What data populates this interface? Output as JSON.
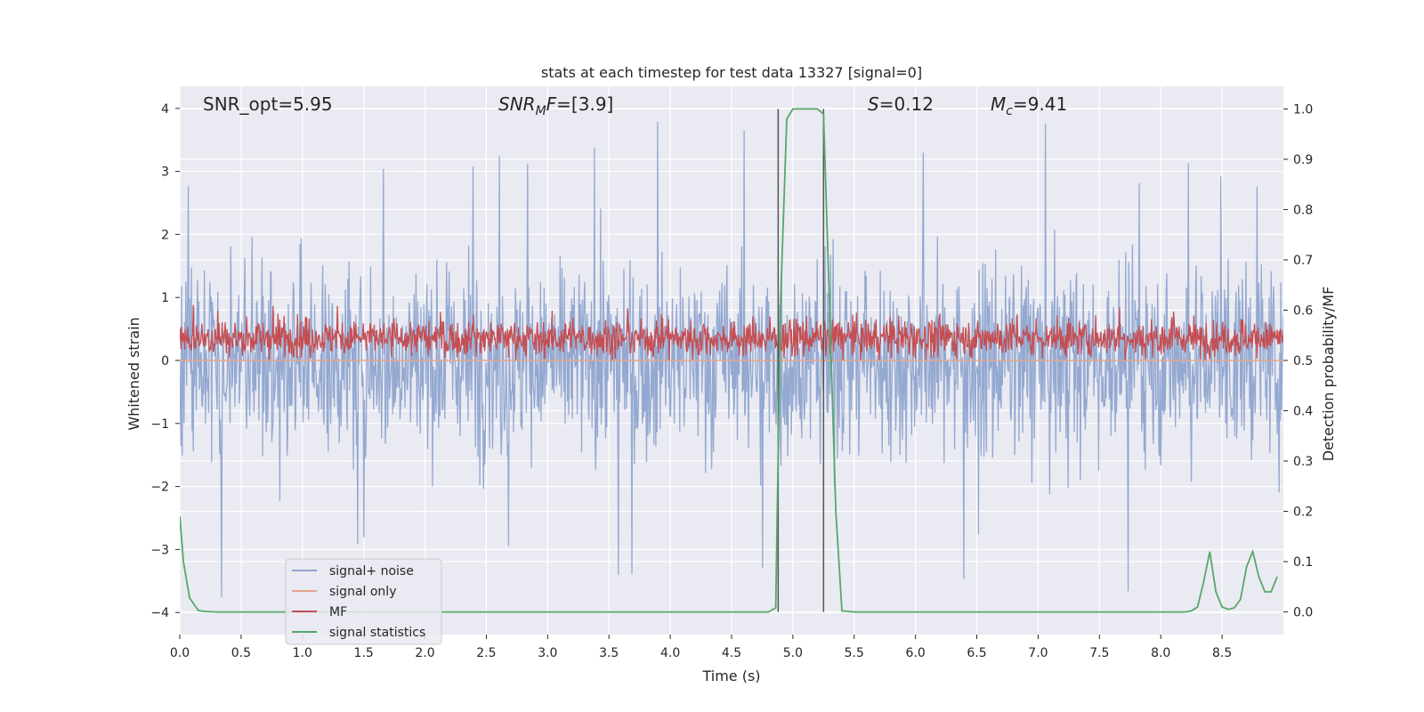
{
  "chart_data": {
    "type": "line",
    "title": "stats at each timestep for test data 13327 [signal=0]",
    "xlabel": "Time (s)",
    "ylabel_left": "Whitened strain",
    "ylabel_right": "Detection probability/MF",
    "xlim": [
      0.0,
      9.0
    ],
    "ylim_left": [
      -4.35,
      4.35
    ],
    "ylim_right": [
      -0.045,
      1.045
    ],
    "x_ticks": [
      "0.0",
      "0.5",
      "1.0",
      "1.5",
      "2.0",
      "2.5",
      "3.0",
      "3.5",
      "4.0",
      "4.5",
      "5.0",
      "5.5",
      "6.0",
      "6.5",
      "7.0",
      "7.5",
      "8.0",
      "8.5"
    ],
    "x_tick_values": [
      0.0,
      0.5,
      1.0,
      1.5,
      2.0,
      2.5,
      3.0,
      3.5,
      4.0,
      4.5,
      5.0,
      5.5,
      6.0,
      6.5,
      7.0,
      7.5,
      8.0,
      8.5
    ],
    "y_left_ticks": [
      "4",
      "3",
      "2",
      "1",
      "0",
      "−1",
      "−2",
      "−3",
      "−4"
    ],
    "y_left_tick_values": [
      4,
      3,
      2,
      1,
      0,
      -1,
      -2,
      -3,
      -4
    ],
    "y_right_ticks": [
      "1.0",
      "0.9",
      "0.8",
      "0.7",
      "0.6",
      "0.5",
      "0.4",
      "0.3",
      "0.2",
      "0.1",
      "0.0"
    ],
    "y_right_tick_values": [
      1.0,
      0.9,
      0.8,
      0.7,
      0.6,
      0.5,
      0.4,
      0.3,
      0.2,
      0.1,
      0.0
    ],
    "grid": true,
    "legend_position": "lower-left",
    "annotations": {
      "snr_opt": "SNR_opt=5.95",
      "snr_mf_base": "SNR",
      "snr_mf_sub": "M",
      "snr_mf_rest": "F=[3.9]",
      "s_var": "S",
      "s_val": "=0.12",
      "mc_var": "M",
      "mc_sub": "c",
      "mc_val": "=9.41"
    },
    "vertical_markers": [
      4.88,
      5.25
    ],
    "series": [
      {
        "name": "signal+ noise",
        "color": "#8fa5cf",
        "axis": "left",
        "description_of_shape": "dense noise, approx. within -2.5..2.7, peaks up to 4.0",
        "envelope_x": [
          0.0,
          9.0
        ],
        "envelope_y": [
          -2.5,
          2.7
        ]
      },
      {
        "name": "signal only",
        "color": "#e8a48b",
        "axis": "left",
        "x": [
          0.0,
          9.0
        ],
        "y": [
          0.0,
          0.0
        ]
      },
      {
        "name": "MF",
        "color": "#c44e52",
        "axis": "right",
        "envelope_y": [
          0.5,
          0.59
        ]
      },
      {
        "name": "signal statistics",
        "color": "#55a868",
        "axis": "right",
        "x": [
          0.0,
          0.03,
          0.08,
          0.15,
          0.2,
          0.3,
          0.5,
          1.0,
          2.0,
          3.0,
          4.0,
          4.5,
          4.8,
          4.86,
          4.9,
          4.95,
          5.0,
          5.2,
          5.25,
          5.3,
          5.35,
          5.4,
          5.5,
          6.0,
          7.0,
          8.0,
          8.2,
          8.25,
          8.3,
          8.35,
          8.4,
          8.45,
          8.5,
          8.55,
          8.6,
          8.65,
          8.7,
          8.75,
          8.8,
          8.85,
          8.9,
          8.95
        ],
        "y": [
          0.19,
          0.1,
          0.028,
          0.003,
          0.001,
          0.0,
          0.0,
          0.0,
          0.0,
          0.0,
          0.0,
          0.0,
          0.0,
          0.008,
          0.62,
          0.98,
          1.0,
          1.0,
          0.99,
          0.6,
          0.2,
          0.002,
          0.0,
          0.0,
          0.0,
          0.0,
          0.0,
          0.002,
          0.01,
          0.06,
          0.12,
          0.04,
          0.01,
          0.005,
          0.008,
          0.025,
          0.09,
          0.12,
          0.07,
          0.04,
          0.04,
          0.07
        ]
      }
    ]
  }
}
